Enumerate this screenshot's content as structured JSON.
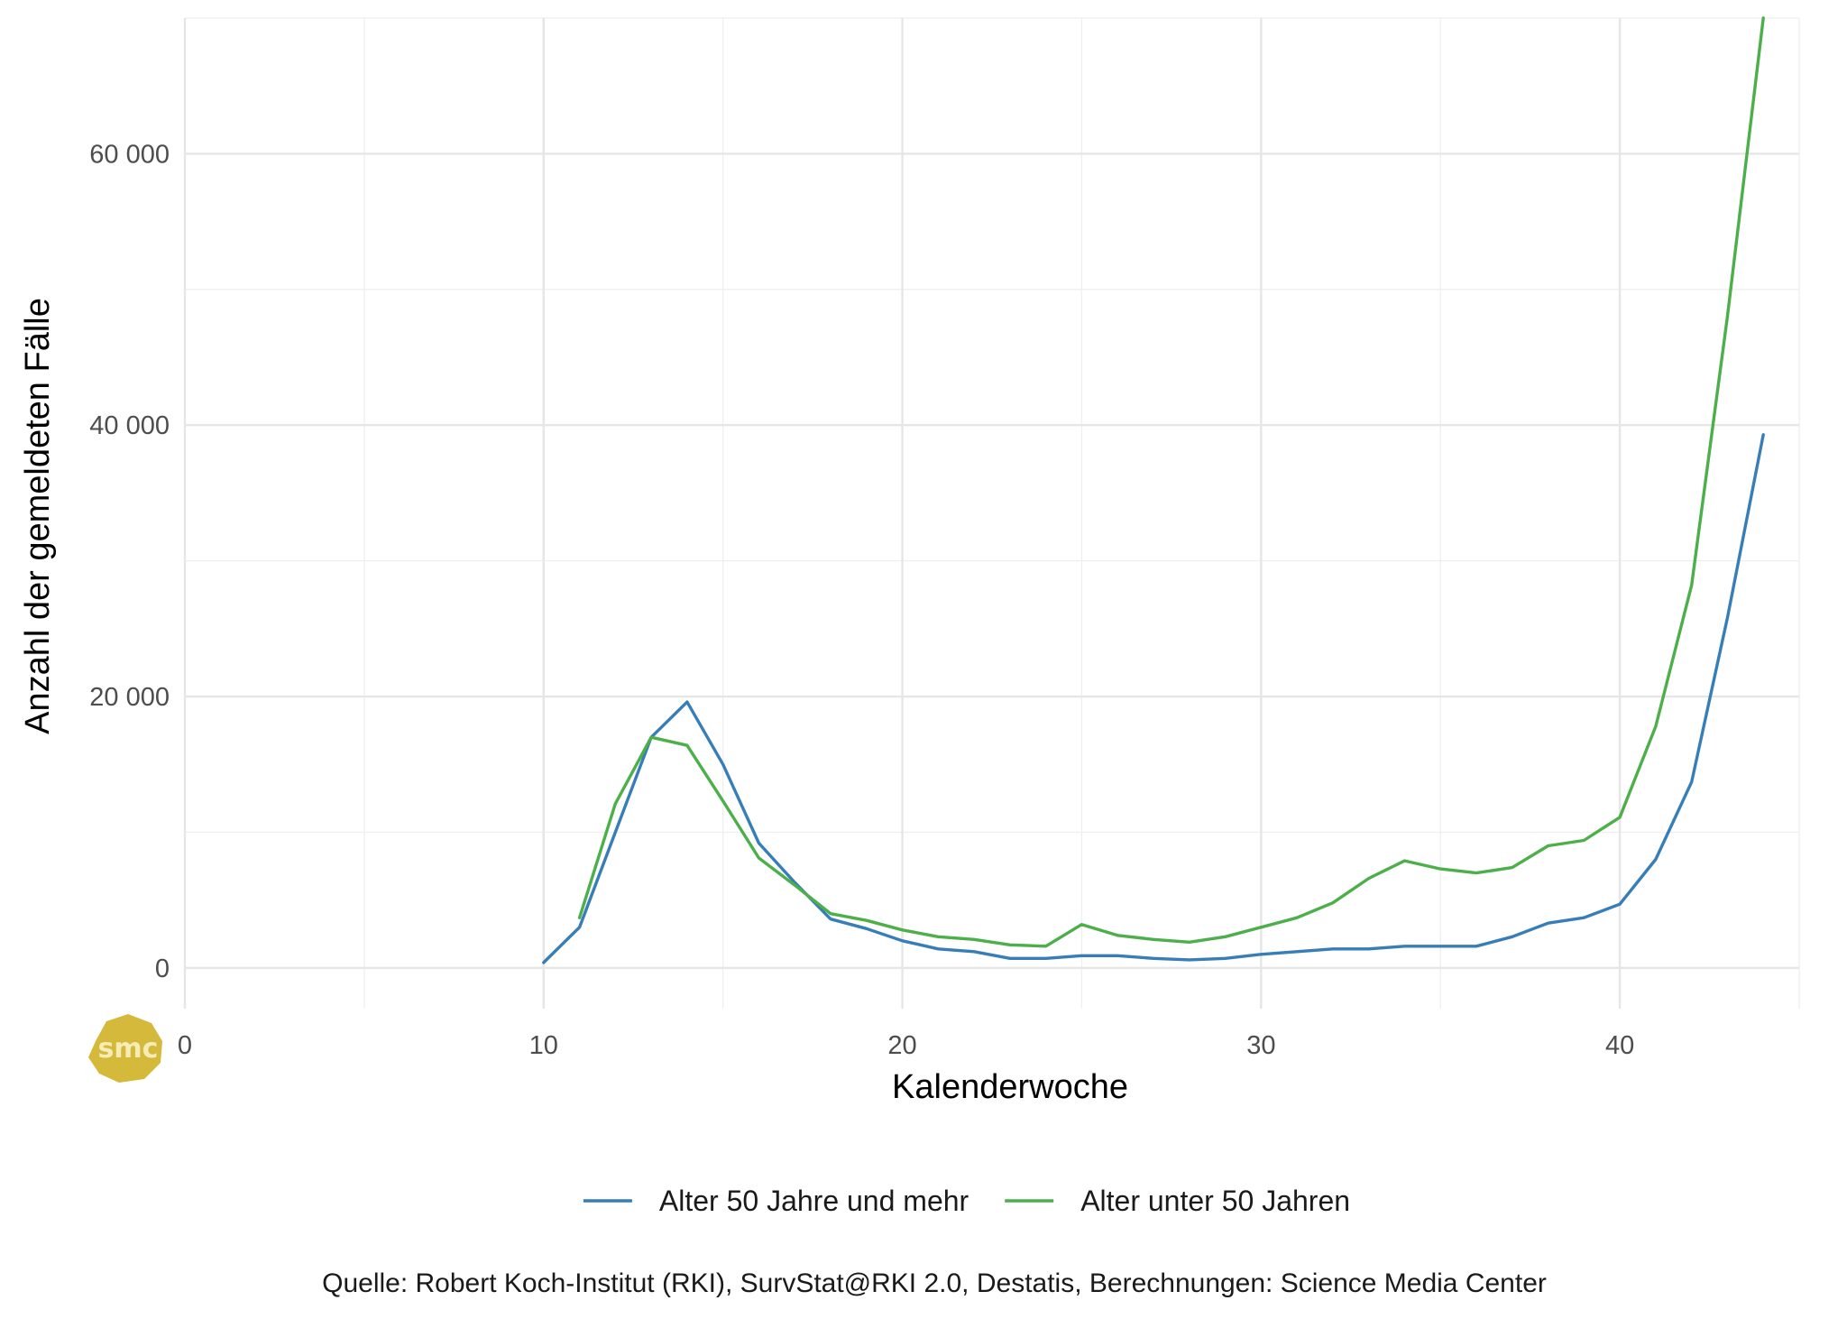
{
  "chart_data": {
    "type": "line",
    "xlabel": "Kalenderwoche",
    "ylabel": "Anzahl der gemeldeten Fälle",
    "xlim": [
      0,
      45
    ],
    "ylim": [
      -3000,
      70000
    ],
    "x_ticks": [
      0,
      10,
      20,
      30,
      40
    ],
    "x_tick_labels": [
      "0",
      "10",
      "20",
      "30",
      "40"
    ],
    "y_ticks": [
      0,
      20000,
      40000,
      60000
    ],
    "y_tick_labels": [
      "0",
      "20 000",
      "40 000",
      "60 000"
    ],
    "grid": true,
    "legend_position": "bottom",
    "series": [
      {
        "name": "Alter 50 Jahre und mehr",
        "color": "#377eb8",
        "x": [
          10,
          11,
          12,
          13,
          14,
          15,
          16,
          17,
          18,
          19,
          20,
          21,
          22,
          23,
          24,
          25,
          26,
          27,
          28,
          29,
          30,
          31,
          32,
          33,
          34,
          35,
          36,
          37,
          38,
          39,
          40,
          41,
          42,
          43,
          44
        ],
        "values": [
          400,
          3000,
          10000,
          17000,
          19600,
          15000,
          9200,
          6300,
          3600,
          2900,
          2000,
          1400,
          1200,
          700,
          700,
          900,
          900,
          700,
          600,
          700,
          1000,
          1200,
          1400,
          1400,
          1600,
          1600,
          1600,
          2300,
          3300,
          3700,
          4700,
          8000,
          13700,
          25800,
          39300
        ]
      },
      {
        "name": "Alter unter 50 Jahren",
        "color": "#4daf4a",
        "x": [
          11,
          12,
          13,
          14,
          15,
          16,
          17,
          18,
          19,
          20,
          21,
          22,
          23,
          24,
          25,
          26,
          27,
          28,
          29,
          30,
          31,
          32,
          33,
          34,
          35,
          36,
          37,
          38,
          39,
          40,
          41,
          42,
          43,
          44
        ],
        "values": [
          3700,
          12100,
          17000,
          16400,
          12300,
          8100,
          6100,
          4000,
          3500,
          2800,
          2300,
          2100,
          1700,
          1600,
          3200,
          2400,
          2100,
          1900,
          2300,
          3000,
          3700,
          4800,
          6600,
          7900,
          7300,
          7000,
          7400,
          9000,
          9400,
          11100,
          17800,
          28200,
          48000,
          70000
        ]
      }
    ],
    "caption": "Quelle: Robert Koch-Institut (RKI), SurvStat@RKI 2.0, Destatis, Berechnungen: Science Media Center"
  },
  "logo": {
    "text": "smc",
    "color": "#d4b93b"
  }
}
